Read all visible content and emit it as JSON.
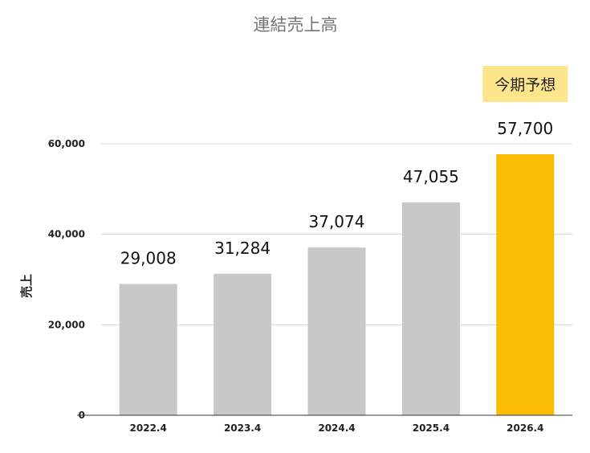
{
  "chart_data": {
    "type": "bar",
    "title": "連結売上高",
    "ylabel": "売上",
    "xlabel": "",
    "categories": [
      "2022.4",
      "2023.4",
      "2024.4",
      "2025.4",
      "2026.4"
    ],
    "values": [
      29008,
      31284,
      37074,
      47055,
      57700
    ],
    "value_labels": [
      "29,008",
      "31,284",
      "37,074",
      "47,055",
      "57,700"
    ],
    "ylim": [
      0,
      60000
    ],
    "yticks": [
      0,
      20000,
      40000,
      60000
    ],
    "ytick_labels": [
      "0",
      "20,000",
      "40,000",
      "60,000"
    ],
    "grid": true,
    "bar_colors": [
      "#c8c8c8",
      "#c8c8c8",
      "#c8c8c8",
      "#c8c8c8",
      "#fbbc04"
    ],
    "annotation": {
      "text": "今期予想",
      "category": "2026.4",
      "background": "#fde58c"
    }
  }
}
